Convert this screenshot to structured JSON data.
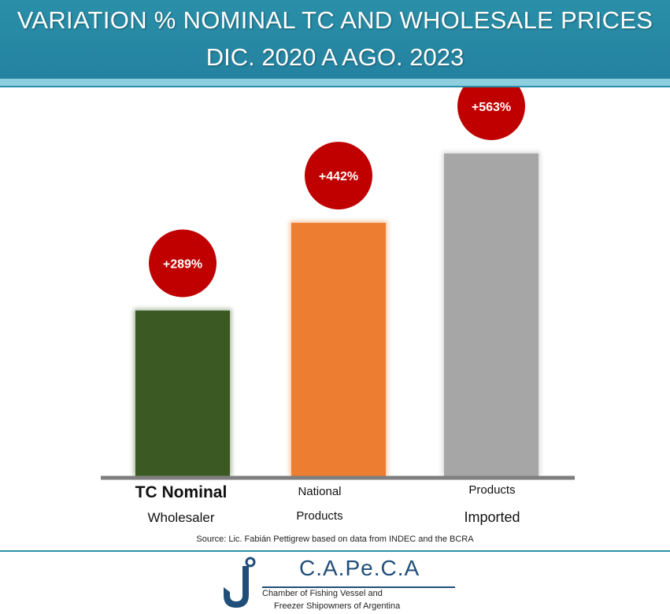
{
  "header": {
    "title_line1": "VARIATION % NOMINAL TC AND WHOLESALE PRICES",
    "title_line2": "DIC. 2020 A AGO. 2023"
  },
  "chart_data": {
    "type": "bar",
    "title": "VARIATION % NOMINAL TC AND WHOLESALE PRICES DIC. 2020 A AGO. 2023",
    "xlabel": "",
    "ylabel": "",
    "ylim": [
      0,
      600
    ],
    "grid": false,
    "categories": [
      {
        "line1": "TC Nominal",
        "line2": "Wholesaler"
      },
      {
        "line1": "National",
        "line2": "Products"
      },
      {
        "line1": "Products",
        "line2": "Imported"
      }
    ],
    "values": [
      289,
      442,
      563
    ],
    "data_labels": [
      "+289%",
      "+442%",
      "+563%"
    ],
    "colors": [
      "#3b5a23",
      "#ed7d31",
      "#a6a6a6"
    ],
    "label_bubble_color": "#c00000"
  },
  "footer": {
    "source": "Source: Lic. Fabián Pettigrew based on data from INDEC and the BCRA",
    "logo_name": "C.A.Pe.C.A",
    "logo_sub1": "Chamber of Fishing Vessel and",
    "logo_sub2": "Freezer Shipowners of Argentina"
  }
}
